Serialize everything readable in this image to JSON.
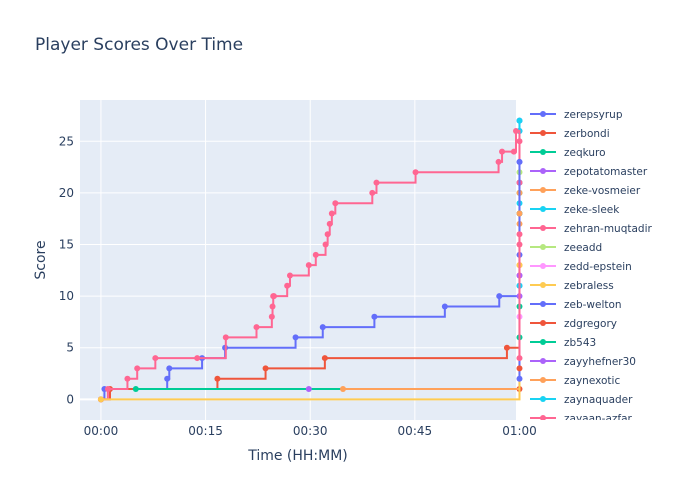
{
  "chart_data": {
    "type": "line",
    "line_shape": "step",
    "title": "Player Scores Over Time",
    "xlabel": "Time (HH:MM)",
    "ylabel": "Score",
    "x_unit": "minutes",
    "xlim": [
      -3,
      59.5
    ],
    "ylim": [
      -2,
      29
    ],
    "x_ticks": [
      {
        "value": 0,
        "label": "00:00"
      },
      {
        "value": 15,
        "label": "00:15"
      },
      {
        "value": 30,
        "label": "00:30"
      },
      {
        "value": 45,
        "label": "00:45"
      },
      {
        "value": 60,
        "label": "01:00"
      }
    ],
    "y_ticks": [
      0,
      5,
      10,
      15,
      20,
      25
    ],
    "grid": true,
    "legend_position": "right",
    "series": [
      {
        "name": "zerepsyrup",
        "color": "#636efa",
        "x": [
          0,
          0.5,
          9.5,
          9.8,
          14.5,
          17.8,
          27.9,
          31.8,
          39.2,
          49.3,
          57.1,
          60,
          60,
          60,
          60,
          60,
          60,
          60
        ],
        "y": [
          0,
          1,
          2,
          3,
          4,
          5,
          6,
          7,
          8,
          9,
          10,
          11,
          14,
          18,
          21,
          23,
          26,
          27
        ]
      },
      {
        "name": "zerbondi",
        "color": "#ef553b",
        "x": [
          0,
          1.3,
          16.7,
          23.6,
          32.1,
          58.2,
          60
        ],
        "y": [
          0,
          1,
          2,
          3,
          4,
          5,
          1
        ]
      },
      {
        "name": "zeqkuro",
        "color": "#00cc96",
        "x": [
          5,
          60,
          60,
          60
        ],
        "y": [
          1,
          9,
          18,
          20
        ]
      },
      {
        "name": "zepotatomaster",
        "color": "#ab63fa",
        "x": [
          29.8
        ],
        "y": [
          1
        ]
      },
      {
        "name": "zeke-vosmeier",
        "color": "#ffa15a",
        "x": [
          34.7,
          60,
          60,
          60
        ],
        "y": [
          1,
          13,
          17,
          20
        ]
      },
      {
        "name": "zeke-sleek",
        "color": "#19d3f3",
        "x": [
          60,
          60,
          60,
          60
        ],
        "y": [
          19,
          21,
          26,
          27
        ]
      },
      {
        "name": "zehran-muqtadir",
        "color": "#ff6692",
        "x": [
          0,
          1,
          3.8,
          5.2,
          7.8,
          13.8,
          17.9,
          22.3,
          24.5,
          24.6,
          24.7,
          24.8,
          26.7,
          27.1,
          29.8,
          30.8,
          32.2,
          32.5,
          32.8,
          33.1,
          33.6,
          38.9,
          39.5,
          45.1,
          57.0,
          57.5,
          59.2,
          59.5,
          60,
          60,
          60,
          60
        ],
        "y": [
          0,
          1,
          2,
          3,
          4,
          4,
          6,
          7,
          8,
          9,
          10,
          10,
          11,
          12,
          13,
          14,
          15,
          16,
          17,
          18,
          19,
          20,
          21,
          22,
          23,
          24,
          24,
          26,
          25,
          21,
          15,
          12
        ]
      },
      {
        "name": "zeeadd",
        "color": "#b6e880",
        "x": [
          60
        ],
        "y": [
          22
        ]
      },
      {
        "name": "zedd-epstein",
        "color": "#ff97ff",
        "x": [
          60
        ],
        "y": [
          8
        ]
      },
      {
        "name": "zebraless",
        "color": "#fecb52",
        "x": [
          0,
          60
        ],
        "y": [
          0,
          13
        ]
      },
      {
        "name": "zeb-welton",
        "color": "#636efa",
        "x": [
          60,
          60
        ],
        "y": [
          2,
          23
        ]
      },
      {
        "name": "zdgregory",
        "color": "#ef553b",
        "x": [
          60
        ],
        "y": [
          3
        ]
      },
      {
        "name": "zb543",
        "color": "#00cc96",
        "x": [
          60
        ],
        "y": [
          6
        ]
      },
      {
        "name": "zayyhefner30",
        "color": "#ab63fa",
        "x": [
          60,
          60
        ],
        "y": [
          10,
          12
        ]
      },
      {
        "name": "zaynexotic",
        "color": "#ffa15a",
        "x": [
          60
        ],
        "y": [
          18
        ]
      },
      {
        "name": "zaynaquader",
        "color": "#19d3f3",
        "x": [
          60
        ],
        "y": [
          11
        ]
      },
      {
        "name": "zayaan-azfar",
        "color": "#ff6692",
        "x": [
          60,
          60
        ],
        "y": [
          4,
          16
        ]
      }
    ]
  }
}
